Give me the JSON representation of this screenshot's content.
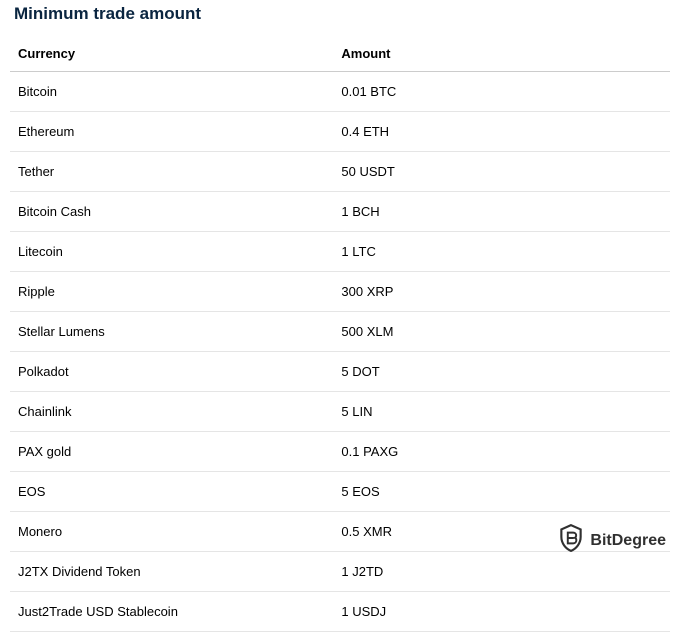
{
  "title": "Minimum trade amount",
  "table": {
    "columns": [
      "Currency",
      "Amount"
    ],
    "rows": [
      [
        "Bitcoin",
        "0.01 BTC"
      ],
      [
        "Ethereum",
        "0.4 ETH"
      ],
      [
        "Tether",
        "50 USDT"
      ],
      [
        "Bitcoin Cash",
        "1 BCH"
      ],
      [
        "Litecoin",
        "1 LTC"
      ],
      [
        "Ripple",
        "300 XRP"
      ],
      [
        "Stellar Lumens",
        "500 XLM"
      ],
      [
        "Polkadot",
        "5 DOT"
      ],
      [
        "Chainlink",
        "5 LIN"
      ],
      [
        "PAX gold",
        "0.1 PAXG"
      ],
      [
        "EOS",
        "5 EOS"
      ],
      [
        "Monero",
        "0.5 XMR"
      ],
      [
        "J2TX Dividend Token",
        "1 J2TD"
      ],
      [
        "Just2Trade USD Stablecoin",
        "1 USDJ"
      ]
    ],
    "header_border_color": "#cccccc",
    "row_border_color": "#e5e5e5",
    "font_size": 13,
    "text_color": "#000000"
  },
  "title_color": "#0a2540",
  "title_font_size": 17,
  "background_color": "#ffffff",
  "watermark": {
    "text": "BitDegree",
    "icon_name": "bitdegree-shield-icon"
  }
}
